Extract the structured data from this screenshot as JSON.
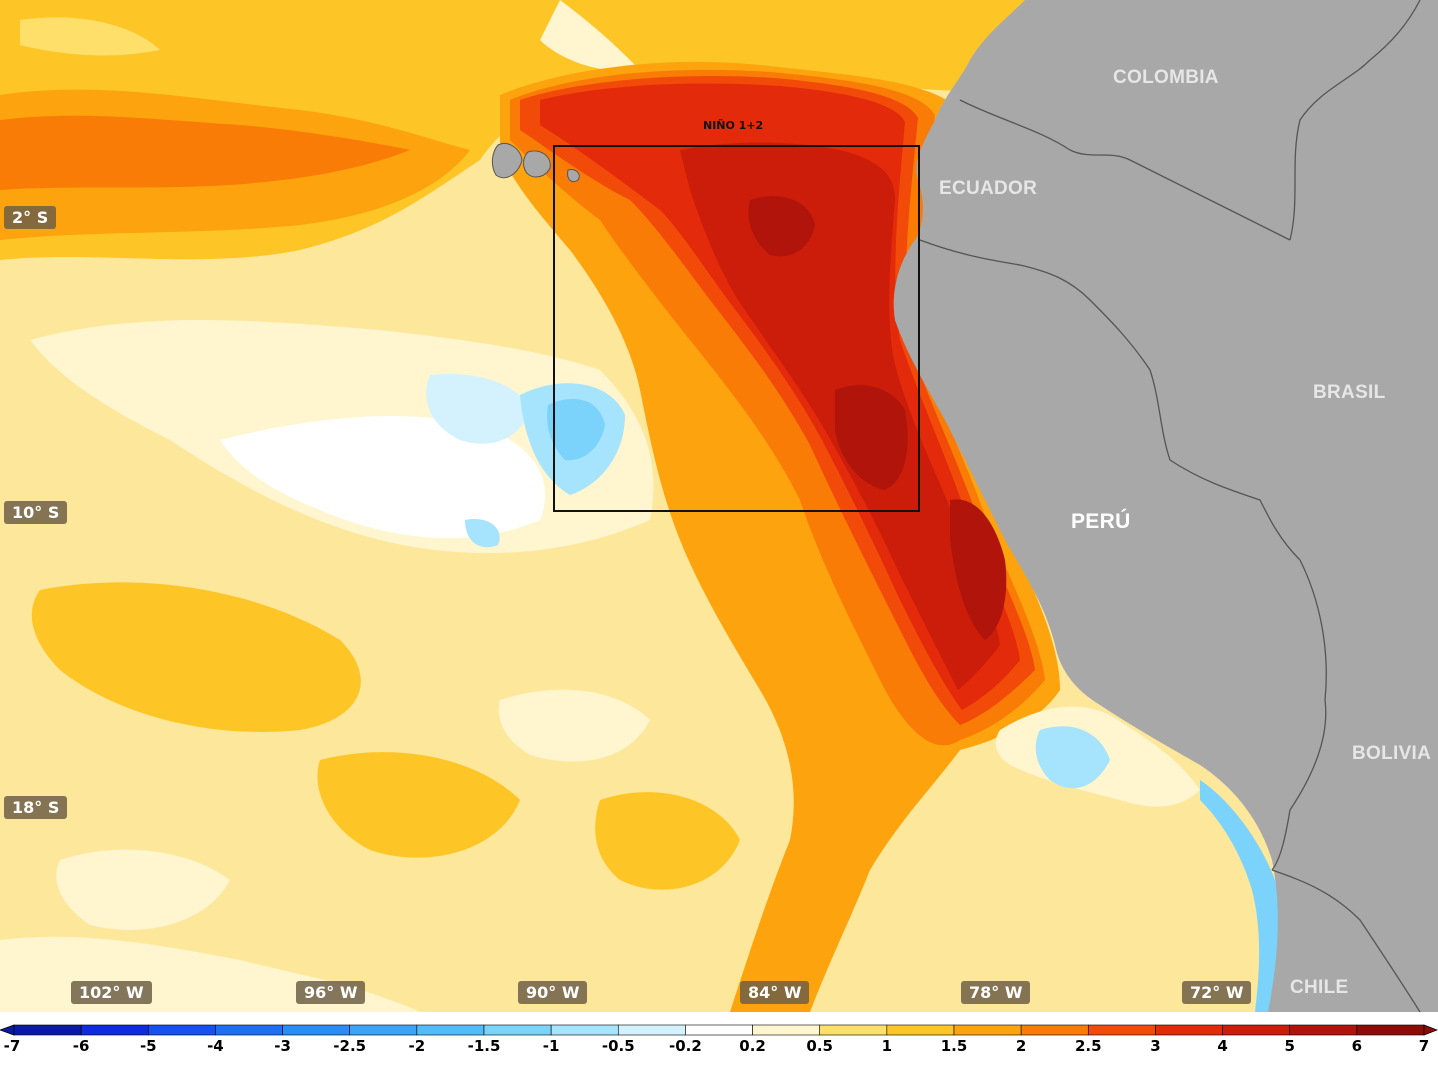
{
  "map": {
    "region_box_label": "NIÑO 1+2",
    "lat_labels": [
      {
        "name": "lat-2s",
        "text": "2° S"
      },
      {
        "name": "lat-10s",
        "text": "10° S"
      },
      {
        "name": "lat-18s",
        "text": "18° S"
      }
    ],
    "lon_labels": [
      {
        "name": "lon-102w",
        "text": "102° W"
      },
      {
        "name": "lon-96w",
        "text": "96° W"
      },
      {
        "name": "lon-90w",
        "text": "90° W"
      },
      {
        "name": "lon-84w",
        "text": "84° W"
      },
      {
        "name": "lon-78w",
        "text": "78° W"
      },
      {
        "name": "lon-72w",
        "text": "72° W"
      }
    ],
    "countries": [
      "COLOMBIA",
      "ECUADOR",
      "BRASIL",
      "PERÚ",
      "BOLIVIA",
      "CHILE"
    ],
    "colors": {
      "land": "#a8a8a8",
      "border": "#555555",
      "anomaly_high": "#cf1b0a",
      "anomaly_cold": "#7fc8f0"
    }
  },
  "colorbar": {
    "ticks": [
      "-7",
      "-6",
      "-5",
      "-4",
      "-3",
      "-2.5",
      "-2",
      "-1.5",
      "-1",
      "-0.5",
      "-0.2",
      "0.2",
      "0.5",
      "1",
      "1.5",
      "2",
      "2.5",
      "3",
      "4",
      "5",
      "6",
      "7"
    ],
    "colors": [
      "#0a1aa5",
      "#0e2be0",
      "#1650f2",
      "#1f6ff5",
      "#2a8cf7",
      "#3aa4f8",
      "#52bcf9",
      "#7bd3fb",
      "#a6e3fc",
      "#d3f2fd",
      "#ffffff",
      "#fff5cf",
      "#fedf6a",
      "#fec526",
      "#fca30d",
      "#f97c07",
      "#f24a08",
      "#e32a0a",
      "#cc1d0a",
      "#b0140a",
      "#8f0b05"
    ]
  }
}
